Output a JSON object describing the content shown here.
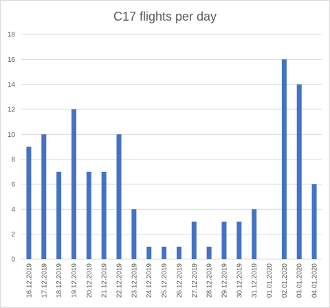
{
  "chart_data": {
    "type": "bar",
    "title": "C17 flights per day",
    "xlabel": "",
    "ylabel": "",
    "categories": [
      "16.12.2019",
      "17.12.2019",
      "18.12.2019",
      "19.12.2019",
      "20.12.2019",
      "21.12.2019",
      "22.12.2019",
      "23.12.2019",
      "24.12.2019",
      "25.12.2019",
      "26.12.2019",
      "27.12.2019",
      "28.12.2019",
      "29.12.2019",
      "30.12.2019",
      "31.12.2019",
      "01.01.2020",
      "02.01.2020",
      "03.01.2020",
      "04.01.2020"
    ],
    "values": [
      9,
      10,
      7,
      12,
      7,
      7,
      10,
      4,
      1,
      1,
      1,
      3,
      1,
      3,
      3,
      4,
      0,
      16,
      14,
      6
    ],
    "ylim": [
      0,
      18
    ],
    "yticks": [
      0,
      2,
      4,
      6,
      8,
      10,
      12,
      14,
      16,
      18
    ],
    "grid": true,
    "legend": "none",
    "bar_color": "#4472c4"
  }
}
